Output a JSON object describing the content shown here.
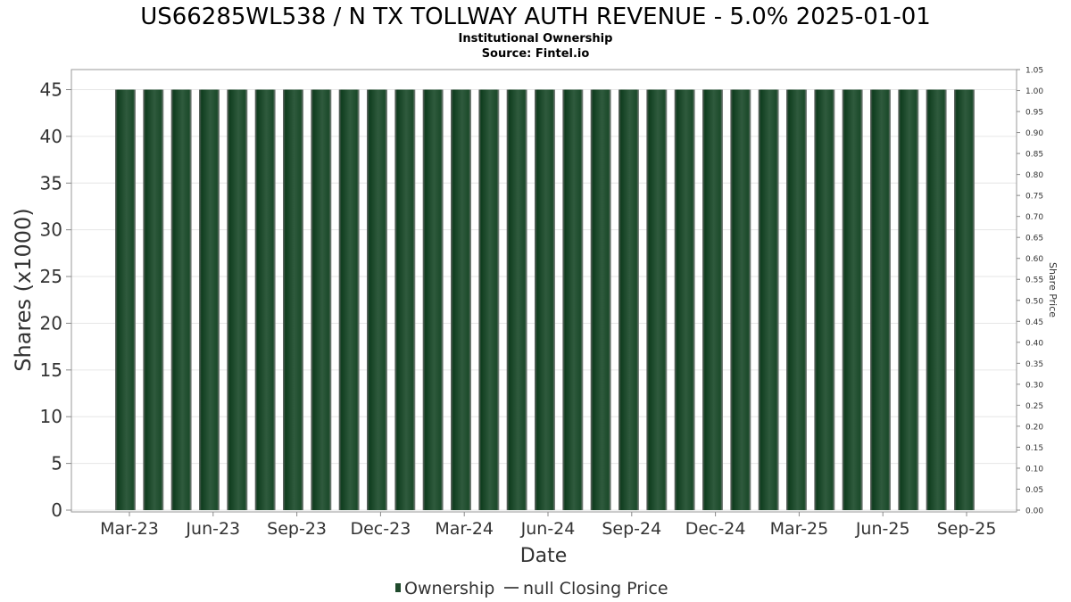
{
  "chart_data": {
    "type": "bar",
    "title": "US66285WL538 / N TX TOLLWAY AUTH REVENUE - 5.0% 2025-01-01",
    "subtitle": "Institutional Ownership",
    "source": "Source: Fintel.io",
    "xlabel": "Date",
    "ylabel": "Shares (x1000)",
    "y2label": "Share Price",
    "ylim": [
      0,
      45
    ],
    "y2lim": [
      0,
      1.05
    ],
    "yticks": [
      "0",
      "5",
      "10",
      "15",
      "20",
      "25",
      "30",
      "35",
      "40",
      "45"
    ],
    "y2ticks": [
      "0.00",
      "0.05",
      "0.10",
      "0.15",
      "0.20",
      "0.25",
      "0.30",
      "0.35",
      "0.40",
      "0.45",
      "0.50",
      "0.55",
      "0.60",
      "0.65",
      "0.70",
      "0.75",
      "0.80",
      "0.85",
      "0.90",
      "0.95",
      "1.00",
      "1.05"
    ],
    "xticks": [
      "Mar-23",
      "Jun-23",
      "Sep-23",
      "Dec-23",
      "Mar-24",
      "Jun-24",
      "Sep-24",
      "Dec-24",
      "Mar-25",
      "Jun-25",
      "Sep-25"
    ],
    "bar_count": 31,
    "values": [
      45,
      45,
      45,
      45,
      45,
      45,
      45,
      45,
      45,
      45,
      45,
      45,
      45,
      45,
      45,
      45,
      45,
      45,
      45,
      45,
      45,
      45,
      45,
      45,
      45,
      45,
      45,
      45,
      45,
      45,
      45
    ],
    "series": [
      {
        "name": "Ownership",
        "color": "#1f4a2c"
      },
      {
        "name": "null Closing Price",
        "color": "#555555"
      }
    ],
    "grid": true,
    "legend_position": "bottom"
  }
}
